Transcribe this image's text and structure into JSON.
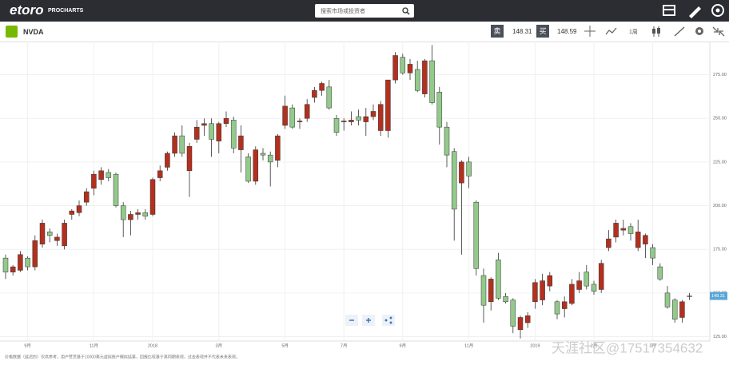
{
  "header": {
    "logo": "etoro",
    "product": "PROCHARTS",
    "search_placeholder": "搜索市场或投资者"
  },
  "toolbar": {
    "symbol": "NVDA",
    "sell_label": "卖",
    "sell_price": "148.31",
    "buy_label": "买",
    "buy_price": "148.59",
    "period": "1周"
  },
  "chart_data": {
    "type": "candlestick",
    "categories": [
      null,
      null,
      null,
      "9月",
      null,
      null,
      null,
      null,
      null,
      null,
      null,
      null,
      "11月",
      null,
      null,
      null,
      null,
      null,
      null,
      null,
      "2018",
      null,
      null,
      null,
      null,
      null,
      null,
      null,
      null,
      "3月",
      null,
      null,
      null,
      null,
      null,
      null,
      null,
      null,
      "5月",
      null,
      null,
      null,
      null,
      null,
      null,
      null,
      "7月",
      null,
      null,
      null,
      null,
      null,
      null,
      null,
      "9月",
      null,
      null,
      null,
      null,
      null,
      null,
      null,
      null,
      "11月",
      null,
      null,
      null,
      null,
      null,
      null,
      null,
      null,
      "2019",
      null,
      null,
      null,
      null,
      null,
      null,
      null,
      "2月",
      null,
      null,
      null,
      null,
      null,
      null,
      null,
      "3月",
      null,
      null,
      null,
      null,
      null
    ],
    "open": [
      170,
      162,
      163,
      170,
      165,
      178,
      185,
      180,
      177,
      195,
      196,
      202,
      210,
      215,
      219,
      218,
      200,
      192,
      195,
      196,
      195,
      216,
      222,
      230,
      240,
      220,
      238,
      246,
      247,
      237,
      247,
      249,
      232,
      228,
      214,
      230,
      229,
      226,
      246,
      256,
      248,
      250,
      262,
      266,
      268,
      250,
      248,
      248,
      251,
      248,
      251,
      243,
      243,
      272,
      285,
      276,
      278,
      264,
      283,
      265,
      245,
      231,
      213,
      225,
      202,
      160,
      145,
      169,
      148,
      146,
      129,
      133,
      145,
      146,
      154,
      145,
      141,
      144,
      152,
      162,
      155,
      152,
      176,
      182,
      186,
      188,
      176,
      178,
      176,
      165,
      150,
      146,
      136,
      148
    ],
    "high": [
      172,
      166,
      174,
      171,
      183,
      192,
      187,
      184,
      192,
      198,
      203,
      210,
      220,
      222,
      221,
      219,
      202,
      197,
      198,
      198,
      216,
      223,
      231,
      242,
      246,
      236,
      249,
      250,
      250,
      248,
      254,
      251,
      246,
      230,
      234,
      233,
      231,
      241,
      263,
      258,
      250,
      261,
      268,
      271,
      272,
      252,
      250,
      254,
      255,
      256,
      258,
      260,
      272,
      288,
      287,
      284,
      283,
      284,
      292,
      268,
      248,
      233,
      226,
      228,
      203,
      164,
      159,
      173,
      150,
      147,
      137,
      139,
      158,
      161,
      162,
      146,
      148,
      158,
      162,
      166,
      157,
      169,
      186,
      192,
      192,
      190,
      192,
      184,
      178,
      167,
      154,
      147,
      146,
      150
    ],
    "low": [
      158,
      160,
      162,
      163,
      163,
      176,
      179,
      177,
      175,
      192,
      194,
      200,
      206,
      212,
      214,
      199,
      182,
      183,
      192,
      192,
      194,
      214,
      220,
      228,
      228,
      205,
      236,
      240,
      228,
      230,
      245,
      230,
      219,
      213,
      212,
      226,
      211,
      222,
      244,
      244,
      244,
      248,
      259,
      263,
      255,
      240,
      243,
      246,
      246,
      240,
      249,
      240,
      239,
      270,
      275,
      272,
      265,
      262,
      258,
      235,
      222,
      180,
      172,
      210,
      160,
      133,
      140,
      146,
      144,
      127,
      124,
      130,
      141,
      143,
      151,
      135,
      136,
      143,
      150,
      152,
      149,
      150,
      174,
      179,
      183,
      180,
      174,
      170,
      166,
      157,
      141,
      133,
      133,
      146
    ],
    "close": [
      162,
      165,
      172,
      165,
      180,
      190,
      183,
      182,
      190,
      197,
      200,
      208,
      218,
      220,
      216,
      200,
      192,
      195,
      196,
      194,
      215,
      220,
      230,
      240,
      230,
      234,
      245,
      247,
      238,
      247,
      250,
      233,
      240,
      214,
      232,
      229,
      225,
      240,
      257,
      245,
      248.5,
      258,
      266,
      270,
      256,
      242,
      248.5,
      249,
      249,
      251,
      254,
      258,
      272,
      286,
      276,
      281,
      266,
      283,
      259,
      245,
      229,
      198,
      225,
      217,
      164,
      143,
      158,
      147,
      145,
      131,
      136,
      137,
      156,
      157,
      160,
      138,
      145,
      155,
      157,
      154,
      151,
      167,
      181,
      190,
      187,
      184,
      185,
      183,
      170,
      158,
      142,
      135,
      145,
      148.3
    ],
    "up_color": "#b3301e",
    "down_color": "#93c98b",
    "ylim": [
      122.5,
      294
    ],
    "yticks": [
      {
        "value": 125,
        "label": "125.00"
      },
      {
        "value": 150,
        "label": "150.00"
      },
      {
        "value": 175,
        "label": "175.00"
      },
      {
        "value": 200,
        "label": "200.00"
      },
      {
        "value": 225,
        "label": "225.00"
      },
      {
        "value": 250,
        "label": "250.00"
      },
      {
        "value": 275,
        "label": "275.00"
      }
    ],
    "last_price": {
      "value": 148.31,
      "label": "148.31"
    },
    "grid": true
  },
  "footer": {
    "disclaimer": "价格数据（延迟的）仅供参考。用户赞赏基于10000美元虚拟账户模拟结果，回报比较基于其同期表现，过去表现并不代表未来表现。"
  },
  "watermark": "天涯社区@17517354632"
}
